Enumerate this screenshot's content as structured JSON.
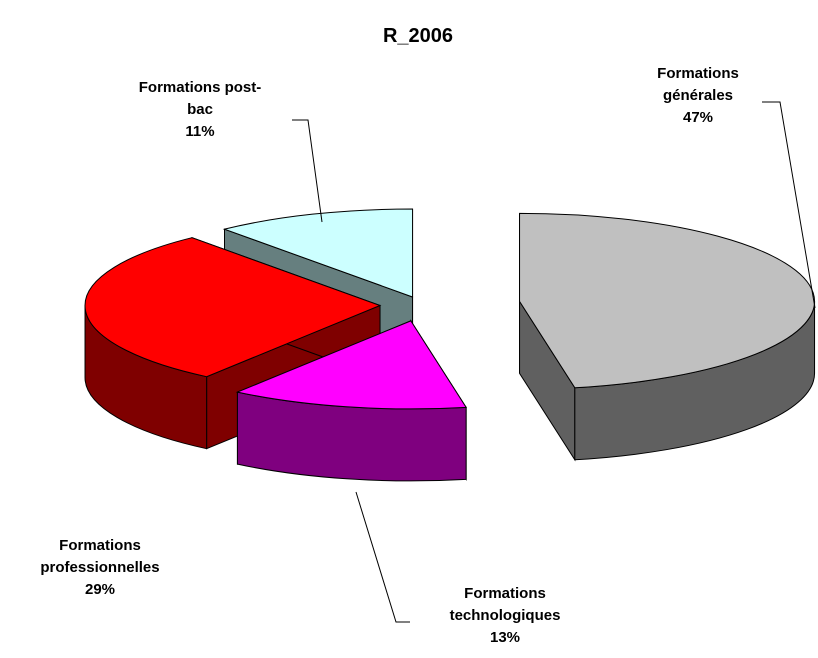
{
  "chart_data": {
    "type": "pie3d",
    "title": "R_2006",
    "categories": [
      "Formations générales",
      "Formations technologiques",
      "Formations professionnelles",
      "Formations post-bac"
    ],
    "values": [
      47,
      13,
      29,
      11
    ],
    "value_labels": [
      "47%",
      "13%",
      "29%",
      "11%"
    ],
    "colors": [
      "#c0c0c0",
      "#ff00ff",
      "#ff0000",
      "#ccffff"
    ]
  }
}
